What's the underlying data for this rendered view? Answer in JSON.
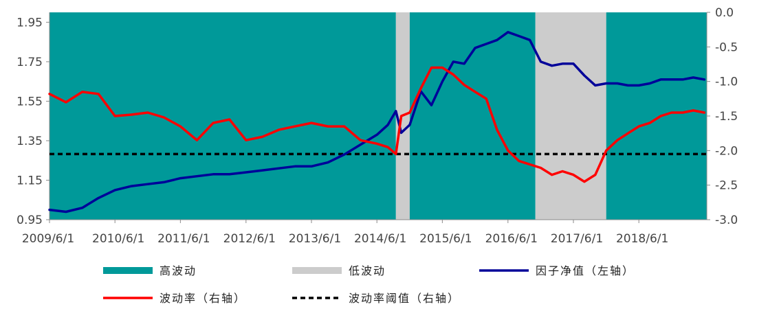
{
  "chart_data": {
    "type": "line",
    "colors": {
      "high_vol": "#009999",
      "low_vol": "#cccccc",
      "nav": "#000099",
      "vol": "#ff0000",
      "threshold": "#000000"
    },
    "x_ticks": [
      "2009/6/1",
      "2010/6/1",
      "2011/6/1",
      "2012/6/1",
      "2013/6/1",
      "2014/6/1",
      "2015/6/1",
      "2016/6/1",
      "2017/6/1",
      "2018/6/1"
    ],
    "x_range": [
      "2009/6/1",
      "2019/6/15"
    ],
    "left_axis": {
      "ylim": [
        0.95,
        2.0
      ],
      "ticks": [
        "0.95",
        "1.15",
        "1.35",
        "1.55",
        "1.75",
        "1.95"
      ]
    },
    "right_axis": {
      "ylim": [
        -3.0,
        0.0
      ],
      "ticks": [
        "0.0",
        "-0.5",
        "-1.0",
        "-1.5",
        "-2.0",
        "-2.5",
        "-3.0"
      ]
    },
    "regimes": [
      {
        "start": "2009/6/1",
        "end": "2014/9/15",
        "type": "high"
      },
      {
        "start": "2014/9/15",
        "end": "2014/12/1",
        "type": "low"
      },
      {
        "start": "2014/12/1",
        "end": "2016/11/1",
        "type": "high"
      },
      {
        "start": "2016/11/1",
        "end": "2017/12/1",
        "type": "low"
      },
      {
        "start": "2017/12/1",
        "end": "2019/6/15",
        "type": "high"
      }
    ],
    "threshold": -2.05,
    "series": [
      {
        "name": "因子净值（左轴）",
        "axis": "left",
        "x": [
          "2009/6/1",
          "2009/9/1",
          "2009/12/1",
          "2010/3/1",
          "2010/6/1",
          "2010/9/1",
          "2010/12/1",
          "2011/3/1",
          "2011/6/1",
          "2011/9/1",
          "2011/12/1",
          "2012/3/1",
          "2012/6/1",
          "2012/9/1",
          "2012/12/1",
          "2013/3/1",
          "2013/6/1",
          "2013/9/1",
          "2013/12/1",
          "2014/3/1",
          "2014/6/1",
          "2014/8/1",
          "2014/9/15",
          "2014/10/15",
          "2014/12/1",
          "2015/2/1",
          "2015/4/1",
          "2015/6/1",
          "2015/8/1",
          "2015/10/1",
          "2015/12/1",
          "2016/2/1",
          "2016/4/1",
          "2016/6/1",
          "2016/8/1",
          "2016/10/1",
          "2016/12/1",
          "2017/2/1",
          "2017/4/1",
          "2017/6/1",
          "2017/8/1",
          "2017/10/1",
          "2017/12/1",
          "2018/2/1",
          "2018/4/1",
          "2018/6/1",
          "2018/8/1",
          "2018/10/1",
          "2018/12/1",
          "2019/2/1",
          "2019/4/1",
          "2019/6/1"
        ],
        "values": [
          1.0,
          0.99,
          1.01,
          1.06,
          1.1,
          1.12,
          1.13,
          1.14,
          1.16,
          1.17,
          1.18,
          1.18,
          1.19,
          1.2,
          1.21,
          1.22,
          1.22,
          1.24,
          1.28,
          1.33,
          1.38,
          1.43,
          1.5,
          1.39,
          1.43,
          1.6,
          1.53,
          1.65,
          1.75,
          1.74,
          1.82,
          1.84,
          1.86,
          1.9,
          1.88,
          1.86,
          1.75,
          1.73,
          1.74,
          1.74,
          1.68,
          1.63,
          1.64,
          1.64,
          1.63,
          1.63,
          1.64,
          1.66,
          1.66,
          1.66,
          1.67,
          1.66
        ]
      },
      {
        "name": "波动率（右轴）",
        "axis": "right",
        "x": [
          "2009/6/1",
          "2009/9/1",
          "2009/12/1",
          "2010/3/1",
          "2010/6/1",
          "2010/9/1",
          "2010/12/1",
          "2011/3/1",
          "2011/6/1",
          "2011/9/1",
          "2011/12/1",
          "2012/3/1",
          "2012/6/1",
          "2012/9/1",
          "2012/12/1",
          "2013/3/1",
          "2013/6/1",
          "2013/9/1",
          "2013/12/1",
          "2014/3/1",
          "2014/6/1",
          "2014/8/1",
          "2014/9/15",
          "2014/10/15",
          "2014/12/1",
          "2015/2/1",
          "2015/4/1",
          "2015/6/1",
          "2015/8/1",
          "2015/10/1",
          "2015/12/1",
          "2016/2/1",
          "2016/4/1",
          "2016/6/1",
          "2016/8/1",
          "2016/10/1",
          "2016/12/1",
          "2017/2/1",
          "2017/4/1",
          "2017/6/1",
          "2017/8/1",
          "2017/10/1",
          "2017/12/1",
          "2018/2/1",
          "2018/4/1",
          "2018/6/1",
          "2018/8/1",
          "2018/10/1",
          "2018/12/1",
          "2019/2/1",
          "2019/4/1",
          "2019/6/1"
        ],
        "values": [
          -1.18,
          -1.3,
          -1.15,
          -1.18,
          -1.5,
          -1.48,
          -1.45,
          -1.52,
          -1.65,
          -1.85,
          -1.6,
          -1.55,
          -1.85,
          -1.8,
          -1.7,
          -1.65,
          -1.6,
          -1.65,
          -1.65,
          -1.85,
          -1.9,
          -1.95,
          -2.05,
          -1.5,
          -1.45,
          -1.1,
          -0.8,
          -0.8,
          -0.9,
          -1.05,
          -1.15,
          -1.25,
          -1.7,
          -2.0,
          -2.15,
          -2.2,
          -2.25,
          -2.35,
          -2.3,
          -2.35,
          -2.45,
          -2.35,
          -2.0,
          -1.85,
          -1.75,
          -1.65,
          -1.6,
          -1.5,
          -1.45,
          -1.45,
          -1.42,
          -1.45
        ]
      }
    ],
    "legend": [
      {
        "label": "高波动",
        "type": "bar",
        "color_key": "high_vol"
      },
      {
        "label": "低波动",
        "type": "bar",
        "color_key": "low_vol"
      },
      {
        "label": "因子净值（左轴）",
        "type": "line",
        "color_key": "nav"
      },
      {
        "label": "波动率（右轴）",
        "type": "line",
        "color_key": "vol"
      },
      {
        "label": "波动率阈值（右轴）",
        "type": "dash",
        "color_key": "threshold"
      }
    ]
  }
}
